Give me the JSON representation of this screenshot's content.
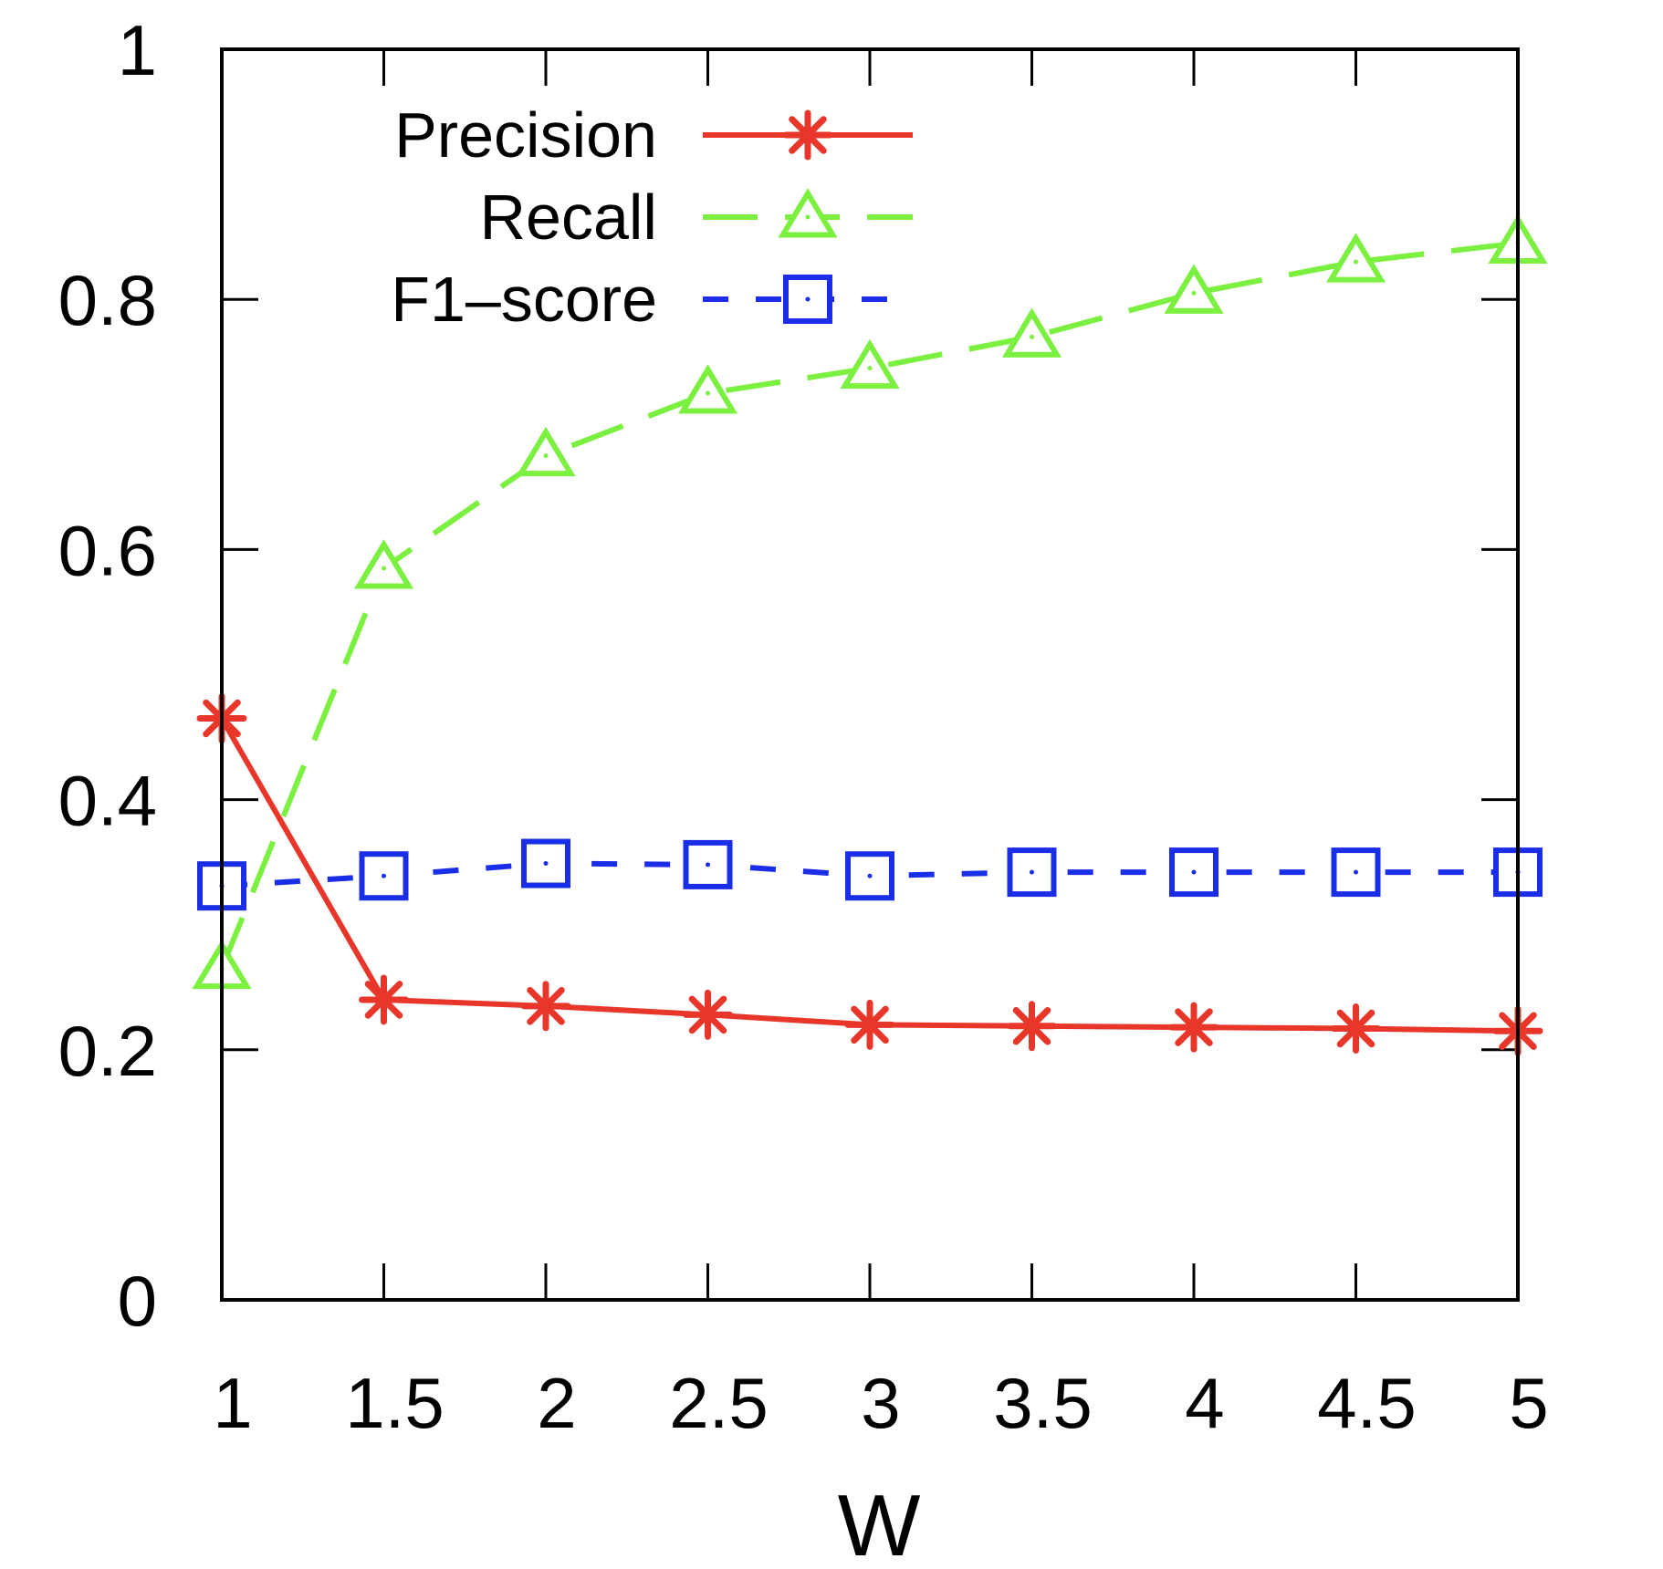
{
  "chart_data": {
    "type": "line",
    "title": "",
    "xlabel": "W",
    "ylabel": "",
    "xlim": [
      1,
      5
    ],
    "ylim": [
      0,
      1
    ],
    "x": [
      1,
      1.5,
      2,
      2.5,
      3,
      3.5,
      4,
      4.5,
      5
    ],
    "x_ticks": [
      "1",
      "1.5",
      "2",
      "2.5",
      "3",
      "3.5",
      "4",
      "4.5",
      "5"
    ],
    "y_ticks": [
      0,
      0.2,
      0.4,
      0.6,
      0.8,
      1
    ],
    "y_tick_labels": [
      "0",
      "0.2",
      "0.4",
      "0.6",
      "0.8",
      "1"
    ],
    "grid": false,
    "legend_position": "top-left",
    "series": [
      {
        "name": "Precision",
        "color": "#e8372a",
        "marker": "asterisk",
        "line_style": "solid",
        "values": [
          0.465,
          0.24,
          0.235,
          0.228,
          0.22,
          0.219,
          0.218,
          0.217,
          0.215
        ]
      },
      {
        "name": "Recall",
        "color": "#7cf040",
        "marker": "triangle",
        "line_style": "dashed",
        "values": [
          0.265,
          0.585,
          0.675,
          0.725,
          0.745,
          0.77,
          0.805,
          0.83,
          0.845
        ]
      },
      {
        "name": "F1–score",
        "color": "#1a2ee8",
        "marker": "square",
        "line_style": "short-dash",
        "values": [
          0.331,
          0.339,
          0.349,
          0.348,
          0.339,
          0.342,
          0.342,
          0.342,
          0.342
        ]
      }
    ]
  }
}
